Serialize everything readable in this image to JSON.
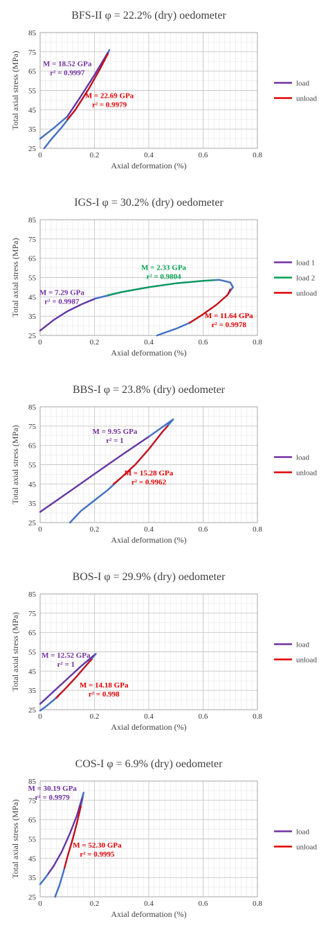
{
  "chart_data": [
    {
      "type": "line",
      "title": "BFS-II φ = 22.2% (dry) oedometer",
      "xlabel": "Axial deformation (%)",
      "ylabel": "Total axial stress (MPa)",
      "xlim": [
        0,
        0.8
      ],
      "ylim": [
        25,
        85
      ],
      "xticks": [
        "0",
        "0.2",
        "0.4",
        "0.6",
        "0.8"
      ],
      "yticks": [
        "25",
        "35",
        "45",
        "55",
        "65",
        "75",
        "85"
      ],
      "grid": true,
      "legend_position": "right",
      "legend": [
        {
          "label": "load",
          "color": "#7030a0"
        },
        {
          "label": "unload",
          "color": "#e00000"
        }
      ],
      "series": [
        {
          "color": "#4472c4",
          "width": 2.5,
          "points": [
            [
              0,
              30
            ],
            [
              0.05,
              35.5
            ],
            [
              0.1,
              41.5
            ],
            [
              0.15,
              52
            ],
            [
              0.2,
              63
            ],
            [
              0.255,
              76
            ],
            [
              0.22,
              66
            ],
            [
              0.18,
              56
            ],
            [
              0.13,
              45
            ],
            [
              0.08,
              36
            ],
            [
              0.04,
              29.5
            ],
            [
              0.015,
              25
            ]
          ]
        },
        {
          "color": "#7030a0",
          "width": 2,
          "points": [
            [
              0.1,
              41.5
            ],
            [
              0.15,
              52
            ],
            [
              0.2,
              63
            ],
            [
              0.25,
              74.5
            ]
          ]
        },
        {
          "color": "#e00000",
          "width": 2,
          "points": [
            [
              0.25,
              74
            ],
            [
              0.22,
              66
            ],
            [
              0.18,
              56
            ],
            [
              0.13,
              45
            ],
            [
              0.1,
              40
            ]
          ]
        }
      ],
      "annotations": [
        {
          "lines": [
            "M = 18.52 GPa",
            "r² = 0.9997"
          ],
          "color": "#7030a0",
          "x": 0.1,
          "y": 67.5
        },
        {
          "lines": [
            "M = 22.69 GPa",
            "r² = 0.9979"
          ],
          "color": "#e00000",
          "x": 0.255,
          "y": 51
        }
      ]
    },
    {
      "type": "line",
      "title": "IGS-I φ = 30.2% (dry) oedometer",
      "xlabel": "Axial deformation (%)",
      "ylabel": "Total axial stress (MPa)",
      "xlim": [
        0,
        0.8
      ],
      "ylim": [
        25,
        85
      ],
      "xticks": [
        "0",
        "0.2",
        "0.4",
        "0.6",
        "0.8"
      ],
      "yticks": [
        "25",
        "35",
        "45",
        "55",
        "65",
        "75",
        "85"
      ],
      "grid": true,
      "legend_position": "right",
      "legend": [
        {
          "label": "load 1",
          "color": "#7030a0"
        },
        {
          "label": "load 2",
          "color": "#00a050"
        },
        {
          "label": "unload",
          "color": "#e00000"
        }
      ],
      "series": [
        {
          "color": "#4472c4",
          "width": 2.5,
          "points": [
            [
              0,
              27.5
            ],
            [
              0.05,
              33
            ],
            [
              0.1,
              37.5
            ],
            [
              0.15,
              41
            ],
            [
              0.2,
              44
            ],
            [
              0.3,
              47.5
            ],
            [
              0.4,
              50
            ],
            [
              0.5,
              52
            ],
            [
              0.6,
              53.3
            ],
            [
              0.66,
              53.8
            ],
            [
              0.7,
              52.5
            ],
            [
              0.71,
              50
            ],
            [
              0.69,
              46
            ],
            [
              0.65,
              41
            ],
            [
              0.6,
              36
            ],
            [
              0.55,
              31.5
            ],
            [
              0.5,
              28.5
            ],
            [
              0.47,
              27
            ],
            [
              0.43,
              25
            ]
          ]
        },
        {
          "color": "#7030a0",
          "width": 2,
          "points": [
            [
              0,
              27.5
            ],
            [
              0.05,
              33
            ],
            [
              0.1,
              37.5
            ],
            [
              0.15,
              41
            ],
            [
              0.2,
              43.8
            ]
          ]
        },
        {
          "color": "#00a050",
          "width": 2,
          "points": [
            [
              0.25,
              46
            ],
            [
              0.3,
              47.5
            ],
            [
              0.4,
              50
            ],
            [
              0.5,
              52
            ],
            [
              0.6,
              53.3
            ],
            [
              0.64,
              53.7
            ]
          ]
        },
        {
          "color": "#e00000",
          "width": 2,
          "points": [
            [
              0.7,
              49
            ],
            [
              0.69,
              46
            ],
            [
              0.65,
              41
            ],
            [
              0.6,
              36
            ],
            [
              0.55,
              31.5
            ]
          ]
        }
      ],
      "annotations": [
        {
          "lines": [
            "M = 7.29 GPa",
            "r² = 0.9987"
          ],
          "color": "#7030a0",
          "x": 0.08,
          "y": 46
        },
        {
          "lines": [
            "M = 2.33 GPa",
            "r² = 0.9804"
          ],
          "color": "#00a050",
          "x": 0.455,
          "y": 59
        },
        {
          "lines": [
            "M = 11.64 GPa",
            "r² = 0.9978"
          ],
          "color": "#e00000",
          "x": 0.695,
          "y": 34
        }
      ]
    },
    {
      "type": "line",
      "title": "BBS-I φ = 23.8% (dry) oedometer",
      "xlabel": "Axial deformation (%)",
      "ylabel": "Total axial stress (MPa)",
      "xlim": [
        0,
        0.8
      ],
      "ylim": [
        25,
        85
      ],
      "xticks": [
        "0",
        "0.2",
        "0.4",
        "0.6",
        "0.8"
      ],
      "yticks": [
        "25",
        "35",
        "45",
        "55",
        "65",
        "75",
        "85"
      ],
      "grid": true,
      "legend_position": "right",
      "legend": [
        {
          "label": "load",
          "color": "#7030a0"
        },
        {
          "label": "unload",
          "color": "#e00000"
        }
      ],
      "series": [
        {
          "color": "#4472c4",
          "width": 2.5,
          "points": [
            [
              0,
              30.5
            ],
            [
              0.1,
              40.3
            ],
            [
              0.2,
              50.2
            ],
            [
              0.3,
              60
            ],
            [
              0.4,
              69.5
            ],
            [
              0.49,
              78.5
            ],
            [
              0.45,
              72
            ],
            [
              0.4,
              63
            ],
            [
              0.35,
              55
            ],
            [
              0.3,
              48.5
            ],
            [
              0.25,
              42
            ],
            [
              0.2,
              36.5
            ],
            [
              0.15,
              31
            ],
            [
              0.11,
              25
            ]
          ]
        },
        {
          "color": "#7030a0",
          "width": 2,
          "points": [
            [
              0,
              30.5
            ],
            [
              0.1,
              40.3
            ],
            [
              0.2,
              50.2
            ],
            [
              0.3,
              60
            ],
            [
              0.4,
              69.5
            ]
          ]
        },
        {
          "color": "#e00000",
          "width": 2,
          "points": [
            [
              0.47,
              75
            ],
            [
              0.45,
              72
            ],
            [
              0.4,
              63
            ],
            [
              0.35,
              55
            ],
            [
              0.3,
              48.5
            ],
            [
              0.27,
              45
            ]
          ]
        }
      ],
      "annotations": [
        {
          "lines": [
            "M = 9.95 GPa",
            "r² = 1"
          ],
          "color": "#7030a0",
          "x": 0.275,
          "y": 71
        },
        {
          "lines": [
            "M = 15.28 GPa",
            "r² = 0.9962"
          ],
          "color": "#e00000",
          "x": 0.4,
          "y": 49.5
        }
      ]
    },
    {
      "type": "line",
      "title": "BOS-I φ = 29.9% (dry) oedometer",
      "xlabel": "Axial deformation (%)",
      "ylabel": "Total axial stress (MPa)",
      "xlim": [
        0,
        0.8
      ],
      "ylim": [
        25,
        85
      ],
      "xticks": [
        "0",
        "0.2",
        "0.4",
        "0.6",
        "0.8"
      ],
      "yticks": [
        "25",
        "35",
        "45",
        "55",
        "65",
        "75",
        "85"
      ],
      "grid": true,
      "legend_position": "right",
      "legend": [
        {
          "label": "load",
          "color": "#7030a0"
        },
        {
          "label": "unload",
          "color": "#e00000"
        }
      ],
      "series": [
        {
          "color": "#4472c4",
          "width": 2.5,
          "points": [
            [
              0,
              28
            ],
            [
              0.05,
              34.5
            ],
            [
              0.1,
              41
            ],
            [
              0.15,
              47.5
            ],
            [
              0.205,
              54
            ],
            [
              0.17,
              48
            ],
            [
              0.13,
              41.5
            ],
            [
              0.09,
              35.5
            ],
            [
              0.05,
              30
            ],
            [
              0.02,
              26.5
            ],
            [
              0,
              24.5
            ]
          ]
        },
        {
          "color": "#7030a0",
          "width": 2,
          "points": [
            [
              0,
              28
            ],
            [
              0.05,
              34.5
            ],
            [
              0.1,
              41
            ],
            [
              0.15,
              47.5
            ],
            [
              0.2,
              53.5
            ]
          ]
        },
        {
          "color": "#e00000",
          "width": 2,
          "points": [
            [
              0.19,
              51
            ],
            [
              0.17,
              48
            ],
            [
              0.13,
              41.5
            ],
            [
              0.09,
              35.5
            ],
            [
              0.06,
              31
            ]
          ]
        }
      ],
      "annotations": [
        {
          "lines": [
            "M = 12.52 GPa",
            "r² = 1"
          ],
          "color": "#7030a0",
          "x": 0.095,
          "y": 52
        },
        {
          "lines": [
            "M = 14.18 GPa",
            "r² = 0.998"
          ],
          "color": "#e00000",
          "x": 0.235,
          "y": 36.5
        }
      ]
    },
    {
      "type": "line",
      "title": "COS-I φ = 6.9% (dry) oedometer",
      "xlabel": "Axial deformation (%)",
      "ylabel": "Total axial stress (MPa)",
      "xlim": [
        0,
        0.8
      ],
      "ylim": [
        25,
        85
      ],
      "xticks": [
        "0",
        "0.2",
        "0.4",
        "0.6",
        "0.8"
      ],
      "yticks": [
        "25",
        "35",
        "45",
        "55",
        "65",
        "75",
        "85"
      ],
      "grid": true,
      "legend_position": "right",
      "legend": [
        {
          "label": "load",
          "color": "#7030a0"
        },
        {
          "label": "unload",
          "color": "#e00000"
        }
      ],
      "series": [
        {
          "color": "#4472c4",
          "width": 2.5,
          "points": [
            [
              0,
              31.5
            ],
            [
              0.02,
              35
            ],
            [
              0.05,
              41
            ],
            [
              0.08,
              48.5
            ],
            [
              0.11,
              58
            ],
            [
              0.135,
              67
            ],
            [
              0.16,
              79
            ],
            [
              0.15,
              72
            ],
            [
              0.135,
              63
            ],
            [
              0.12,
              55
            ],
            [
              0.1,
              45.5
            ],
            [
              0.085,
              37.5
            ],
            [
              0.07,
              30.5
            ],
            [
              0.055,
              25
            ]
          ]
        },
        {
          "color": "#7030a0",
          "width": 2,
          "points": [
            [
              0.03,
              37
            ],
            [
              0.05,
              41
            ],
            [
              0.08,
              48.5
            ],
            [
              0.11,
              58
            ],
            [
              0.135,
              67
            ],
            [
              0.155,
              76
            ]
          ]
        },
        {
          "color": "#e00000",
          "width": 2,
          "points": [
            [
              0.15,
              72
            ],
            [
              0.135,
              63
            ],
            [
              0.12,
              55
            ],
            [
              0.1,
              45.5
            ],
            [
              0.09,
              40
            ]
          ]
        }
      ],
      "annotations": [
        {
          "lines": [
            "M = 30.19 GPa",
            "r² = 0.9979"
          ],
          "color": "#7030a0",
          "x": 0.045,
          "y": 80
        },
        {
          "lines": [
            "M = 52.30 GPa",
            "r² = 0.9995"
          ],
          "color": "#e00000",
          "x": 0.21,
          "y": 50.5
        }
      ]
    }
  ]
}
